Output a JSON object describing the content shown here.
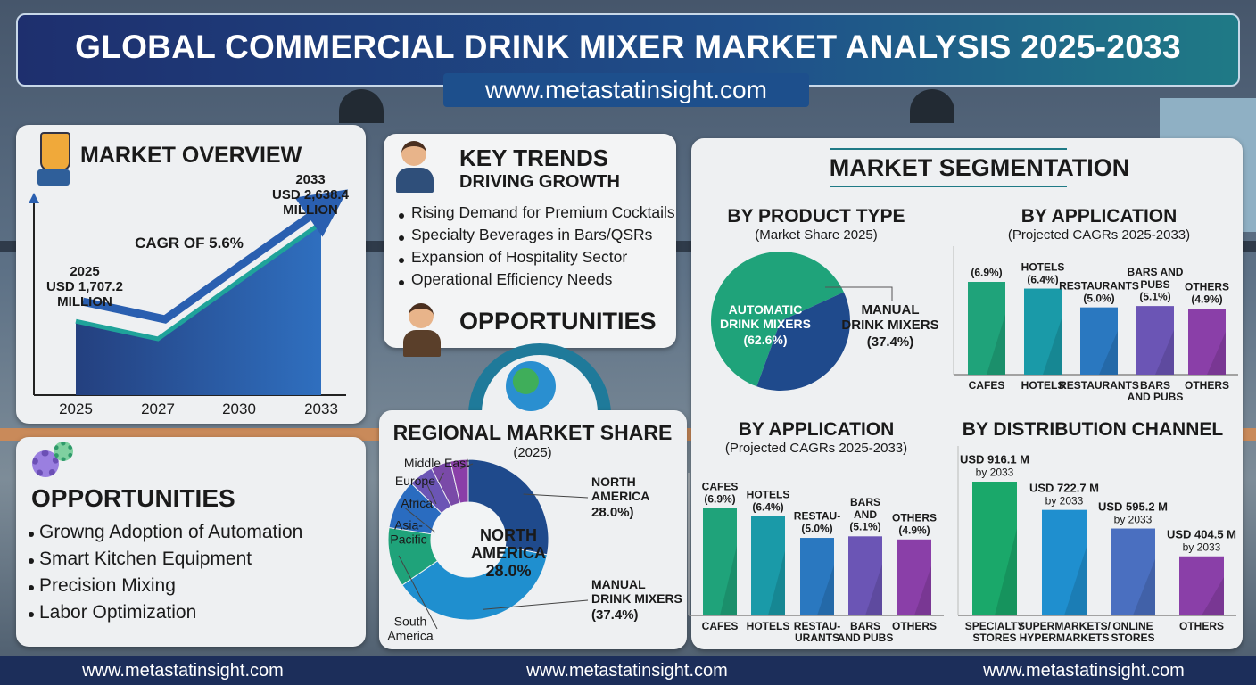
{
  "header": {
    "title": "GLOBAL COMMERCIAL DRINK MIXER MARKET ANALYSIS 2025-2033",
    "url": "www.metastatinsight.com"
  },
  "market_overview": {
    "title": "MARKET OVERVIEW",
    "cagr": "CAGR OF 5.6%"
  },
  "key_trends": {
    "title": "KEY TRENDS",
    "subtitle": "DRIVING GROWTH",
    "items": [
      "Rising Demand for Premium Cocktails",
      "Specialty Beverages in Bars/QSRs",
      "Expansion of Hospitality Sector",
      "Operational Efficiency Needs"
    ],
    "opportunities_title": "OPPORTUNITIES"
  },
  "opportunities": {
    "title": "OPPORTUNITIES",
    "items": [
      "Growng Adoption of Automation",
      "Smart Kitchen Equipment",
      "Precision Mixing",
      "Labor Optimization"
    ]
  },
  "segmentation": {
    "title": "MARKET SEGMENTATION"
  },
  "footer": {
    "links": [
      "www.metastatinsight.com",
      "www.metastatinsight.com",
      "www.metastatinsight.com"
    ]
  },
  "chart_data": [
    {
      "type": "area",
      "categories": [
        "2025",
        "2027",
        "2030",
        "2033"
      ],
      "values": [
        1707.2,
        1540,
        2090,
        2638.4
      ],
      "value_labels": [
        "USD 1,707.2\nMILLION",
        null,
        null,
        "USD 2,638.4\nMILLION"
      ],
      "color": "#1f4a9c"
    },
    {
      "type": "pie",
      "title": "BY PRODUCT TYPE",
      "subtitle": "(Market Share 2025)",
      "categories": [
        "AUTOMATIC\nDRINK MIXERS",
        "MANUAL\nDRINK MIXERS"
      ],
      "values": [
        62.6,
        37.4
      ],
      "value_labels": [
        "(62.6%)",
        "(37.4%)"
      ],
      "colors": [
        "#1fa37a",
        "#1f4a8c"
      ]
    },
    {
      "type": "bar",
      "title": "BY APPLICATION",
      "subtitle": "(Projected CAGRs 2025-2033)",
      "categories": [
        "CAFES",
        "HOTELS",
        "RESTAURANTS",
        "BARS\nAND PUBS",
        "OTHERS"
      ],
      "captions": [
        null,
        "HOTELS",
        "RESTAURANTS",
        "BARS AND\nPUBS",
        "OTHERS"
      ],
      "values": [
        6.9,
        6.4,
        5.0,
        5.1,
        4.9
      ],
      "value_labels": [
        "(6.9%)",
        "(6.4%)",
        "(5.0%)",
        "(5.1%)",
        "(4.9%)"
      ],
      "colors": [
        "#1fa37a",
        "#1a9aa8",
        "#2a78c0",
        "#6b55b5",
        "#8a3fa8"
      ]
    },
    {
      "type": "bar",
      "title": "BY APPLICATION",
      "subtitle": "(Projected CAGRs 2025-2033)",
      "categories": [
        "CAFES",
        "HOTELS",
        "RESTAU-\nURANTS",
        "BARS\nAND PUBS",
        "OTHERS"
      ],
      "captions": [
        "CAFES",
        "HOTELS",
        "RESTAU-",
        "BARS\nAND",
        "OTHERS"
      ],
      "values": [
        6.9,
        6.4,
        5.0,
        5.1,
        4.9
      ],
      "value_labels": [
        "(6.9%)",
        "(6.4%)",
        "(5.0%)",
        "(5.1%)",
        "(4.9%)"
      ],
      "colors": [
        "#1fa37a",
        "#1a9aa8",
        "#2a78c0",
        "#6b55b5",
        "#8a3fa8"
      ]
    },
    {
      "type": "bar",
      "title": "BY DISTRIBUTION CHANNEL",
      "categories": [
        "SPECIALTY\nSTORES",
        "SUPERMARKETS/\nHYPERMARKETS",
        "ONLINE\nSTORES",
        "OTHERS"
      ],
      "values": [
        916.1,
        722.7,
        595.2,
        404.5
      ],
      "value_labels": [
        "USD 916.1 M",
        "USD 722.7 M",
        "USD 595.2 M",
        "USD 404.5 M"
      ],
      "value_note": "by 2033",
      "colors": [
        "#1aa86a",
        "#1f8fcf",
        "#4a6fc0",
        "#8a3fa8"
      ]
    },
    {
      "type": "donut",
      "title": "REGIONAL MARKET SHARE",
      "subtitle": "(2025)",
      "center_label": "NORTH\nAMERICA\n28.0%",
      "categories": [
        "NORTH\nAMERICA",
        "MANUAL\nDRINK MIXERS",
        "South\nAmerica",
        "Asia-\nPacific",
        "Africa",
        "Europe",
        "Middle East"
      ],
      "values": [
        28.0,
        37.4,
        12,
        10,
        5,
        4,
        3.6
      ],
      "value_labels": [
        "28.0%)",
        "(37.4%)",
        null,
        null,
        null,
        null,
        null
      ],
      "colors": [
        "#1f4a8c",
        "#1f8fcf",
        "#1fa37a",
        "#2a6cc0",
        "#6b55b5",
        "#7a4aa8",
        "#8a3fa8"
      ]
    }
  ]
}
